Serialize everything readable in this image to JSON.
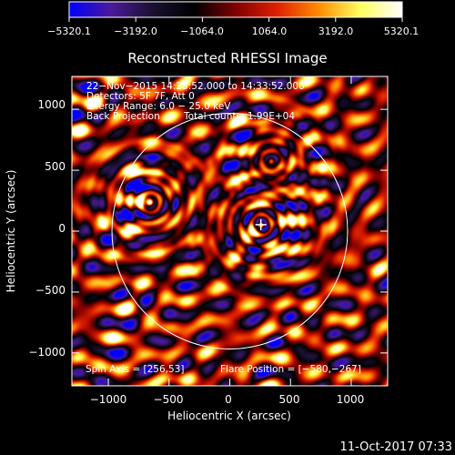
{
  "chart_data": {
    "type": "heatmap",
    "title": "Reconstructed RHESSI Image",
    "xlabel": "Heliocentric X (arcsec)",
    "ylabel": "Heliocentric Y (arcsec)",
    "xlim": [
      -1300,
      1300
    ],
    "ylim": [
      -1270,
      1270
    ],
    "x_ticks": [
      -1000,
      -500,
      0,
      500,
      1000
    ],
    "x_tick_labels": [
      "−1000",
      "−500",
      "0",
      "500",
      "1000"
    ],
    "y_ticks": [
      -1000,
      -500,
      0,
      500,
      1000
    ],
    "y_tick_labels": [
      "−1000",
      "−500",
      "0",
      "500",
      "1000"
    ],
    "colorbar": {
      "min": -5320.1,
      "max": 5320.1,
      "tick_values": [
        -5320.1,
        -3192.0,
        -1064.0,
        1064.0,
        3192.0,
        5320.1
      ],
      "tick_labels": [
        "−5320.1",
        "−3192.0",
        "−1064.0",
        "1064.0",
        "3192.0",
        "5320.1"
      ],
      "colormap": [
        "#0000ff",
        "#4b1a9a",
        "#1a1030",
        "#000000",
        "#800000",
        "#e02000",
        "#ff8c00",
        "#ffff60",
        "#ffffff"
      ]
    },
    "annotations": [
      "22−Nov−2015 14:23:52.000 to 14:33:52.000",
      "Detectors: 5F 7F, Att 0",
      "Energy Range: 6.0 − 25.0 keV",
      "Back Projection",
      "Total counts: 1.99E+04"
    ],
    "spin_axis_text": "Spin Axis = [256,53]",
    "flare_position_text": "Flare Position = [−580,−267]",
    "solar_limb_radius_arcsec": 970,
    "marker_position": [
      256,
      53
    ],
    "grid": false
  },
  "footer": {
    "date_stamp": "11-Oct-2017 07:33"
  }
}
